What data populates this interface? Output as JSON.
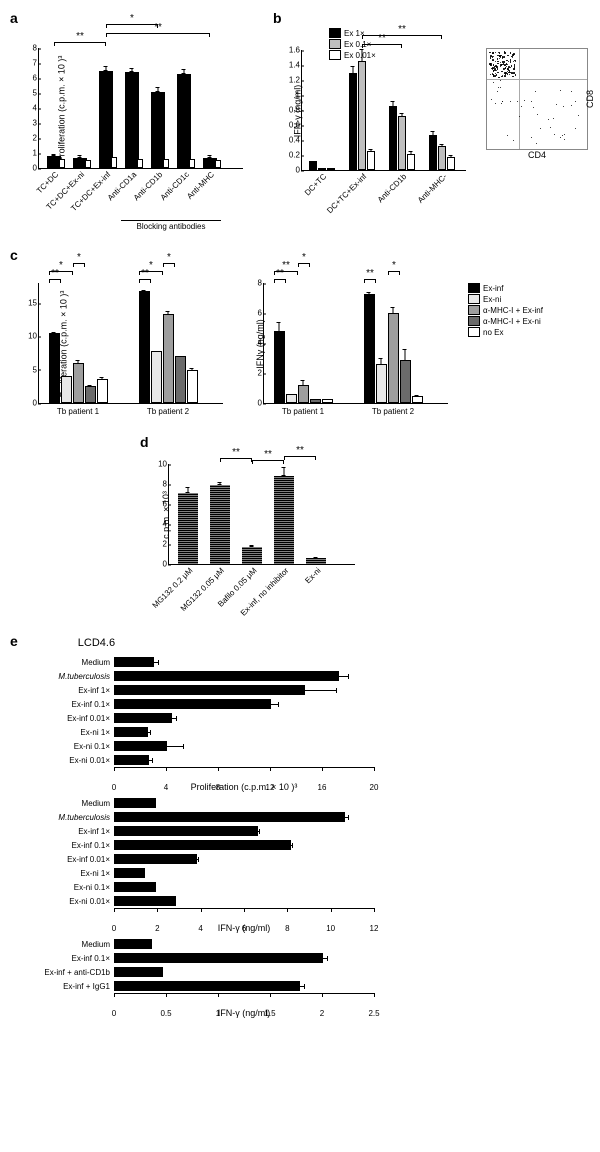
{
  "panel_a": {
    "label": "a",
    "ylabel": "Proliferation (c.p.m. × 10 )³",
    "ylim": [
      0,
      8
    ],
    "ytick_step": 1,
    "categories": [
      "TC+DC",
      "TC+DC+Ex-ni",
      "TC+DC+Ex-inf",
      "Anti-CD1a",
      "Anti-CD1b",
      "Anti-CD1c",
      "Anti-MHC"
    ],
    "values": [
      0.8,
      0.7,
      6.5,
      6.4,
      5.1,
      6.3,
      0.7
    ],
    "errors": [
      0.15,
      0.15,
      0.3,
      0.25,
      0.3,
      0.3,
      0.15
    ],
    "lower_values": [
      0.5,
      0.4,
      0.6,
      0.5,
      0.5,
      0.5,
      0.4
    ],
    "bar_color": "#000000",
    "blocking_label": "Blocking antibodies",
    "sig": [
      {
        "from": 0,
        "to": 2,
        "text": "**"
      },
      {
        "from": 2,
        "to": 6,
        "text": "**"
      },
      {
        "from": 2,
        "to": 4,
        "text": "*"
      }
    ]
  },
  "panel_b": {
    "label": "b",
    "ylabel": "IFN-γ (ng/ml)",
    "ylim": [
      0,
      1.6
    ],
    "yticks": [
      0,
      0.2,
      0.4,
      0.6,
      0.8,
      1.0,
      1.2,
      1.4,
      1.6
    ],
    "categories": [
      "DC+TC",
      "DC+TC+Ex-inf",
      "Anti-CD1b",
      "Anti-MHC-"
    ],
    "series": [
      {
        "name": "Ex 1×",
        "color": "#000000",
        "values": [
          0.12,
          1.3,
          0.85,
          0.47
        ],
        "errors": [
          0.02,
          0.1,
          0.08,
          0.06
        ]
      },
      {
        "name": "Ex 0.1×",
        "color": "#bfbfbf",
        "values": [
          0,
          1.45,
          0.72,
          0.32
        ],
        "errors": [
          0,
          0.18,
          0.06,
          0.04
        ]
      },
      {
        "name": "Ex 0.01×",
        "color": "#ffffff",
        "values": [
          0,
          0.25,
          0.22,
          0.18
        ],
        "errors": [
          0,
          0.04,
          0.05,
          0.04
        ]
      }
    ],
    "sig": [
      {
        "from": 1,
        "to": 2,
        "text": "**"
      },
      {
        "from": 1,
        "to": 3,
        "text": "**"
      }
    ],
    "scatter_x": "CD4",
    "scatter_y": "CD8"
  },
  "panel_c": {
    "label": "c",
    "left": {
      "ylabel": "Proliferation (c.p.m. × 10 )³",
      "ylim": [
        0,
        18
      ],
      "yticks": [
        0,
        5,
        10,
        15
      ],
      "groups": [
        "Tb patient 1",
        "Tb patient 2"
      ],
      "series": [
        {
          "name": "Ex-inf",
          "color": "#000000"
        },
        {
          "name": "Ex-ni",
          "color": "#e8e8e8"
        },
        {
          "name": "α-MHC-I + Ex-inf",
          "color": "#9e9e9e"
        },
        {
          "name": "α-MHC-I + Ex-ni",
          "color": "#6b6b6b"
        },
        {
          "name": "no Ex",
          "color": "#ffffff"
        }
      ],
      "values": [
        [
          10.5,
          4.0,
          6.0,
          2.5,
          3.6
        ],
        [
          16.8,
          7.8,
          13.3,
          7.0,
          5.0
        ]
      ],
      "errors": [
        [
          0.3,
          0.2,
          0.6,
          0.3,
          0.4
        ],
        [
          0.3,
          0.2,
          0.6,
          0.25,
          0.4
        ]
      ],
      "sig": [
        {
          "grp": 0,
          "from": 0,
          "to": 1,
          "text": "**"
        },
        {
          "grp": 0,
          "from": 0,
          "to": 2,
          "text": "*"
        },
        {
          "grp": 0,
          "from": 2,
          "to": 3,
          "text": "*"
        },
        {
          "grp": 1,
          "from": 0,
          "to": 1,
          "text": "**"
        },
        {
          "grp": 1,
          "from": 0,
          "to": 2,
          "text": "*"
        },
        {
          "grp": 1,
          "from": 2,
          "to": 3,
          "text": "*"
        }
      ]
    },
    "right": {
      "ylabel": "IFNγ (ng/ml)",
      "ylim": [
        0,
        8
      ],
      "yticks": [
        0,
        2,
        4,
        6,
        8
      ],
      "groups": [
        "Tb patient 1",
        "Tb patient 2"
      ],
      "values": [
        [
          4.8,
          0.6,
          1.2,
          0.25,
          0.3
        ],
        [
          7.3,
          2.6,
          6.0,
          2.9,
          0.5
        ]
      ],
      "errors": [
        [
          0.7,
          0.1,
          0.4,
          0.1,
          0.05
        ],
        [
          0.2,
          0.5,
          0.5,
          0.8,
          0.1
        ]
      ],
      "sig": [
        {
          "grp": 0,
          "from": 0,
          "to": 1,
          "text": "**"
        },
        {
          "grp": 0,
          "from": 0,
          "to": 2,
          "text": "**"
        },
        {
          "grp": 0,
          "from": 2,
          "to": 3,
          "text": "*"
        },
        {
          "grp": 1,
          "from": 0,
          "to": 1,
          "text": "**"
        },
        {
          "grp": 1,
          "from": 2,
          "to": 3,
          "text": "*"
        }
      ]
    }
  },
  "panel_d": {
    "label": "d",
    "ylabel": "c.p.m. × 10³",
    "ylim": [
      0,
      10
    ],
    "yticks": [
      0,
      2,
      4,
      6,
      8,
      10
    ],
    "categories": [
      "MG132 0.2 μM",
      "MG132 0.05 μM",
      "Bafilo 0.05 μM",
      "Ex-inf, no inhibitor",
      "Ex-ni"
    ],
    "values": [
      7.1,
      7.9,
      1.7,
      8.8,
      0.6
    ],
    "errors": [
      0.6,
      0.3,
      0.2,
      0.9,
      0.15
    ],
    "bar_pattern": "dense",
    "sig": [
      {
        "from": 2,
        "to": 3,
        "text": "**"
      },
      {
        "from": 1,
        "to": 2,
        "text": "**"
      },
      {
        "from": 3,
        "to": 4,
        "text": "**"
      }
    ]
  },
  "panel_e": {
    "label": "e",
    "title": "LCD4.6",
    "chart1": {
      "xlabel": "Proliferation (c.p.m. × 10 )³",
      "xlim": [
        0,
        20
      ],
      "xticks": [
        0,
        4,
        8,
        12,
        16,
        20
      ],
      "categories": [
        "Medium",
        "M.tuberculosis",
        "Ex-inf 1×",
        "Ex-inf 0.1×",
        "Ex-inf 0.01×",
        "Ex-ni 1×",
        "Ex-ni 0.1×",
        "Ex-ni 0.01×"
      ],
      "values": [
        3.0,
        17.2,
        14.6,
        12.0,
        4.4,
        2.5,
        4.0,
        2.6
      ],
      "errors": [
        0.4,
        0.8,
        2.5,
        0.6,
        0.4,
        0.3,
        1.3,
        0.3
      ]
    },
    "chart2": {
      "xlabel": "IFN-γ (ng/ml)",
      "xlim": [
        0,
        12
      ],
      "xticks": [
        0,
        2,
        4,
        6,
        8,
        10,
        12
      ],
      "categories": [
        "Medium",
        "M.tuberculosis",
        "Ex-inf 1×",
        "Ex-inf 0.1×",
        "Ex-inf 0.01×",
        "Ex-ni 1×",
        "Ex-ni 0.1×",
        "Ex-ni 0.01×"
      ],
      "values": [
        1.9,
        10.6,
        6.6,
        8.1,
        3.8,
        1.4,
        1.9,
        2.8
      ],
      "errors": [
        0,
        0.2,
        0.1,
        0.1,
        0.1,
        0,
        0,
        0
      ]
    },
    "chart3": {
      "xlabel": "IFN-γ (ng/ml)",
      "xlim": [
        0,
        2.5
      ],
      "xticks": [
        0,
        0.5,
        1.0,
        1.5,
        2.0,
        2.5
      ],
      "categories": [
        "Medium",
        "Ex-inf 0.1×",
        "Ex-inf + anti-CD1b",
        "Ex-inf + IgG1"
      ],
      "values": [
        0.36,
        2.0,
        0.46,
        1.78
      ],
      "errors": [
        0,
        0.05,
        0,
        0.05
      ]
    }
  }
}
